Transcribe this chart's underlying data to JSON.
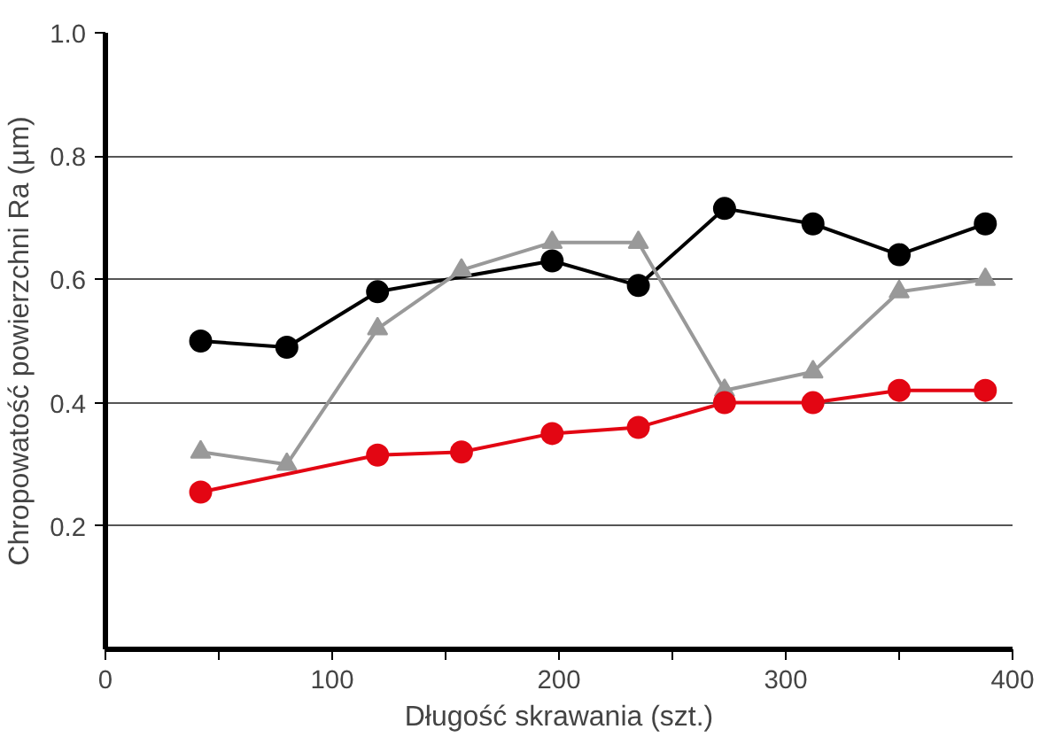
{
  "chart_data": {
    "type": "line",
    "xlabel": "Długość skrawania (szt.)",
    "ylabel": "Chropowatość powierzchni Ra (µm)",
    "xlim": [
      0,
      400
    ],
    "xticks": [
      0,
      {
        "value": 50,
        "label": null
      },
      100,
      {
        "value": 150,
        "label": null
      },
      200,
      {
        "value": 250,
        "label": null
      },
      300,
      {
        "value": 350,
        "label": null
      },
      400
    ],
    "ylim": [
      0,
      1.0
    ],
    "yticks": [
      0.2,
      0.4,
      0.6,
      0.8,
      {
        "value": 1.0,
        "label": "1.0"
      }
    ],
    "grid": "y",
    "series": [
      {
        "color": "#000000",
        "marker": "circle",
        "x": [
          42,
          80,
          120,
          197,
          235,
          273,
          312,
          350,
          388
        ],
        "values": [
          0.5,
          0.49,
          0.58,
          0.63,
          0.59,
          0.715,
          0.69,
          0.64,
          0.69
        ]
      },
      {
        "color": "#999999",
        "marker": "triangle",
        "x": [
          42,
          80,
          120,
          157,
          197,
          235,
          273,
          312,
          350,
          388
        ],
        "values": [
          0.32,
          0.3,
          0.52,
          0.615,
          0.66,
          0.66,
          0.42,
          0.45,
          0.58,
          0.6
        ]
      },
      {
        "color": "#e30613",
        "marker": "circle",
        "x": [
          42,
          120,
          157,
          197,
          235,
          273,
          312,
          350,
          388
        ],
        "values": [
          0.255,
          0.315,
          0.32,
          0.35,
          0.36,
          0.4,
          0.4,
          0.42,
          0.42
        ]
      }
    ]
  }
}
